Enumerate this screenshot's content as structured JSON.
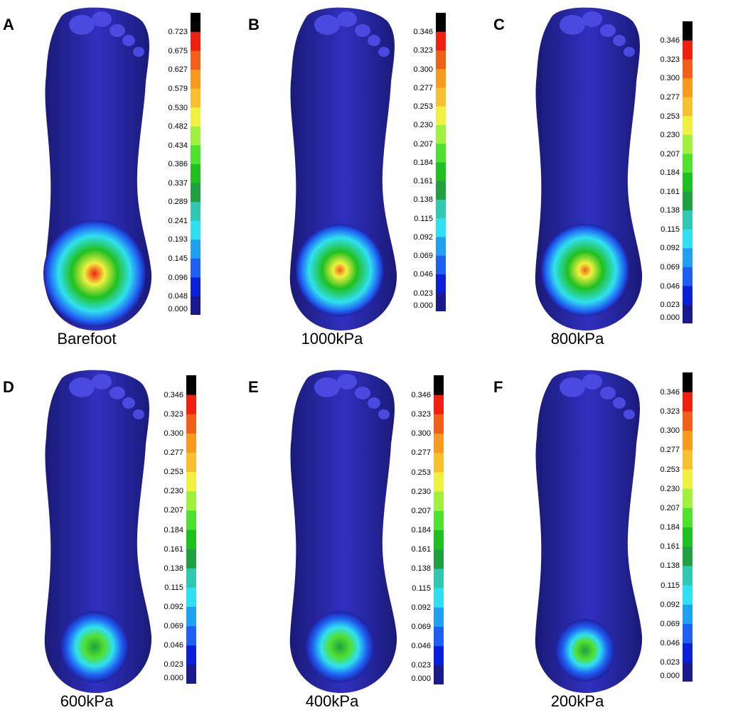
{
  "legend_colors": [
    "#1a1a8c",
    "#0a20d8",
    "#1f5ff2",
    "#20a0f0",
    "#30e0f0",
    "#30c8b0",
    "#20a040",
    "#20c020",
    "#50e030",
    "#a0f040",
    "#f0f040",
    "#f8c030",
    "#f89a20",
    "#f06018",
    "#f02010",
    "#000000"
  ],
  "panels": [
    {
      "letter": "A",
      "caption": "Barefoot",
      "ticks": [
        "0.723",
        "0.675",
        "0.627",
        "0.579",
        "0.530",
        "0.482",
        "0.434",
        "0.386",
        "0.337",
        "0.289",
        "0.241",
        "0.193",
        "0.145",
        "0.096",
        "0.048",
        "0.000"
      ],
      "hot": "wide"
    },
    {
      "letter": "B",
      "caption": "1000kPa",
      "ticks": [
        "0.346",
        "0.323",
        "0.300",
        "0.277",
        "0.253",
        "0.230",
        "0.207",
        "0.184",
        "0.161",
        "0.138",
        "0.115",
        "0.092",
        "0.069",
        "0.046",
        "0.023",
        "0.000"
      ],
      "hot": "med"
    },
    {
      "letter": "C",
      "caption": "800kPa",
      "ticks": [
        "0.346",
        "0.323",
        "0.300",
        "0.277",
        "0.253",
        "0.230",
        "0.207",
        "0.184",
        "0.161",
        "0.138",
        "0.115",
        "0.092",
        "0.069",
        "0.046",
        "0.023",
        "0.000"
      ],
      "hot": "med"
    },
    {
      "letter": "D",
      "caption": "600kPa",
      "ticks": [
        "0.346",
        "0.323",
        "0.300",
        "0.277",
        "0.253",
        "0.230",
        "0.207",
        "0.184",
        "0.161",
        "0.138",
        "0.115",
        "0.092",
        "0.069",
        "0.046",
        "0.023",
        "0.000"
      ],
      "hot": "small"
    },
    {
      "letter": "E",
      "caption": "400kPa",
      "ticks": [
        "0.346",
        "0.323",
        "0.300",
        "0.277",
        "0.253",
        "0.230",
        "0.207",
        "0.184",
        "0.161",
        "0.138",
        "0.115",
        "0.092",
        "0.069",
        "0.046",
        "0.023",
        "0.000"
      ],
      "hot": "small"
    },
    {
      "letter": "F",
      "caption": "200kPa",
      "ticks": [
        "0.346",
        "0.323",
        "0.300",
        "0.277",
        "0.253",
        "0.230",
        "0.207",
        "0.184",
        "0.161",
        "0.138",
        "0.115",
        "0.092",
        "0.069",
        "0.046",
        "0.023",
        "0.000"
      ],
      "hot": "tiny"
    }
  ]
}
